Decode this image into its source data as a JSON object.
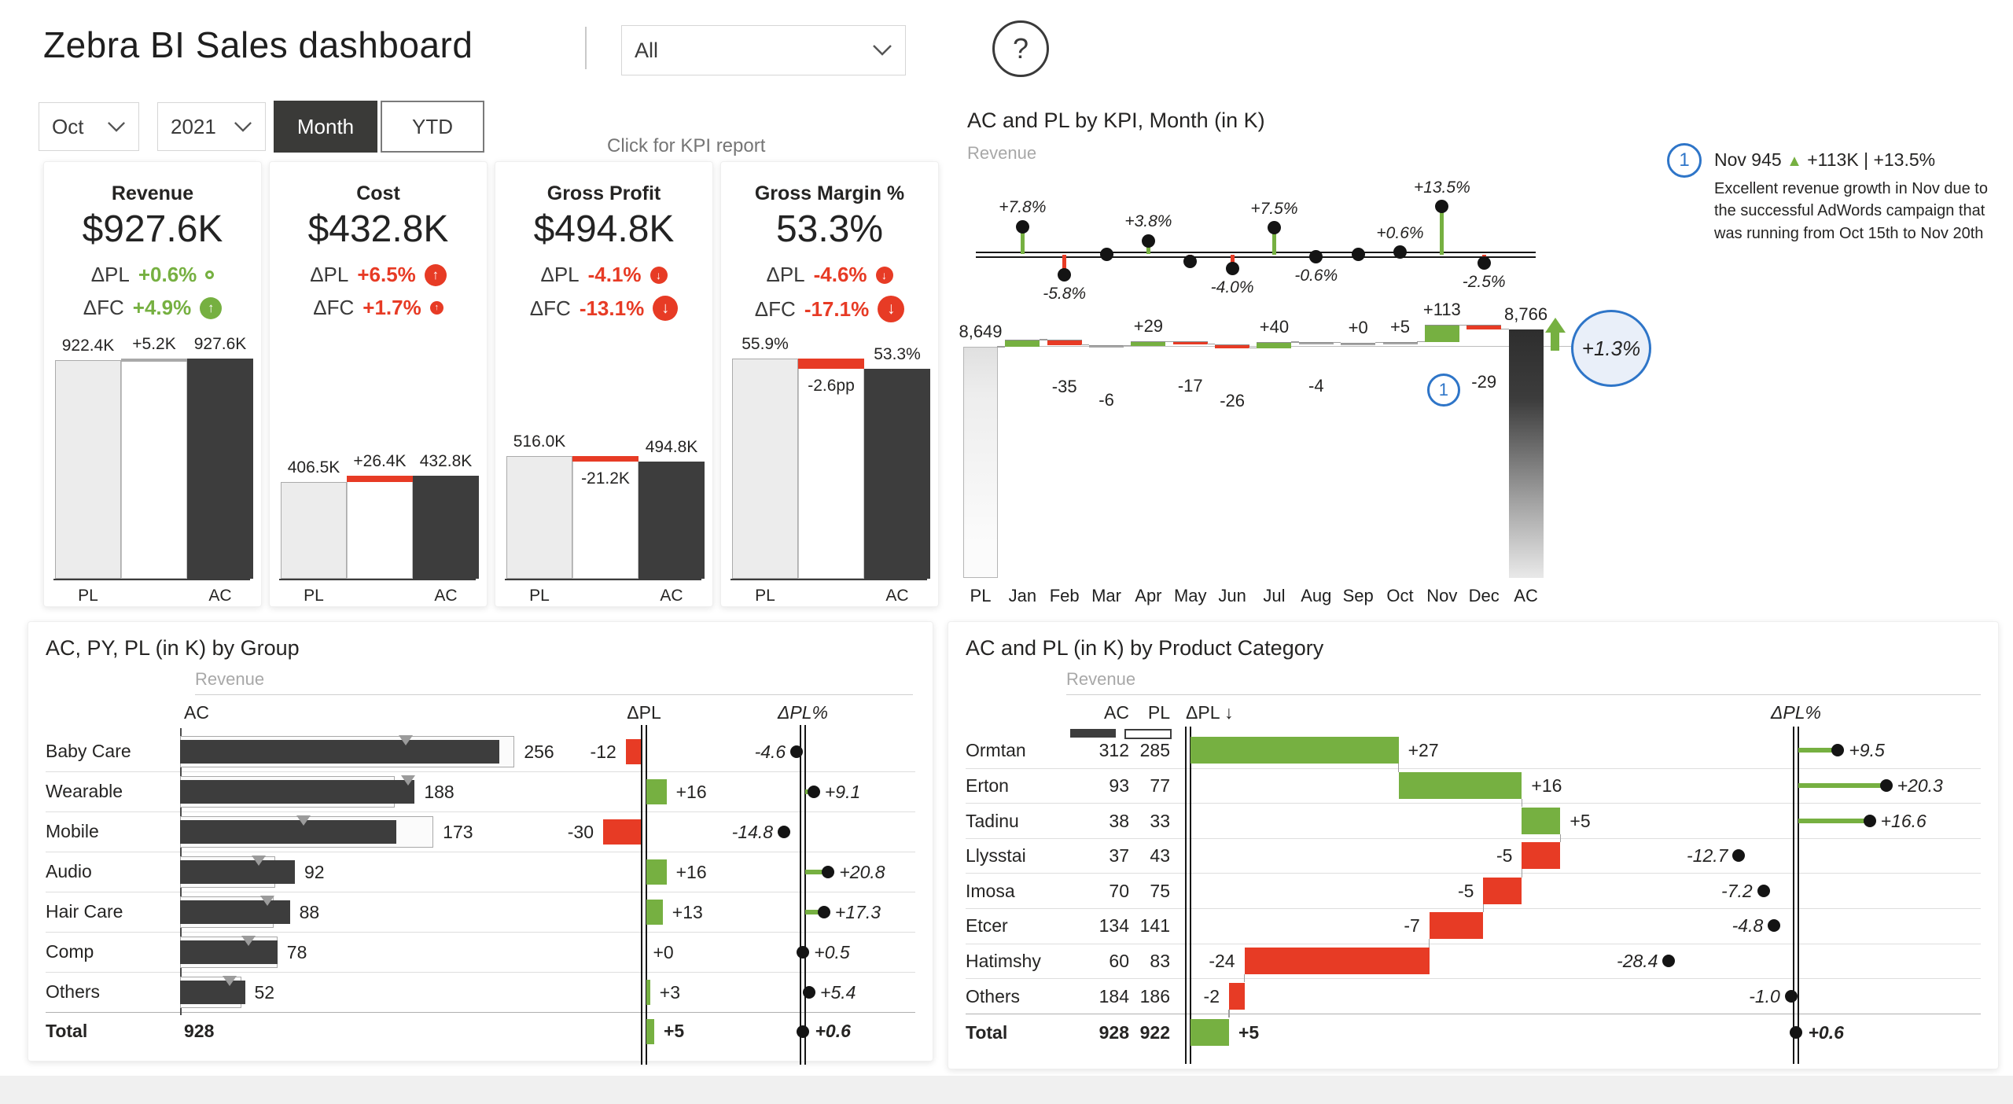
{
  "colors": {
    "green": "#76b041",
    "red": "#e73b25",
    "dark": "#3d3d3d",
    "light_bar": "#ececec",
    "gray_seg": "#a9a9a9",
    "blue": "#2e75c8"
  },
  "header": {
    "title": "Zebra BI Sales dashboard",
    "divider": "|",
    "scope_dropdown": {
      "value": "All"
    },
    "help_label": "?"
  },
  "filters": {
    "month_dropdown": {
      "value": "Oct"
    },
    "year_dropdown": {
      "value": "2021"
    },
    "period_toggle": {
      "month": "Month",
      "ytd": "YTD",
      "selected": "Month"
    },
    "kpi_hint": "Click for KPI report"
  },
  "kpi_cards": [
    {
      "title": "Revenue",
      "value": "$927.6K",
      "pl_row": {
        "label": "ΔPL",
        "value": "+0.6%",
        "color": "green",
        "icon": {
          "dir": "none",
          "size": 11,
          "filled": false
        }
      },
      "fc_row": {
        "label": "ΔFC",
        "value": "+4.9%",
        "color": "green",
        "icon": {
          "dir": "up",
          "size": 28,
          "filled": true
        }
      },
      "chart": {
        "pl": 922.4,
        "ac": 927.6,
        "scale_max": 927.6,
        "pl_label": "922.4K",
        "delta_label": "+5.2K",
        "ac_label": "927.6K",
        "delta_color": "gray",
        "delta_label_pos": "above",
        "x_left": "PL",
        "x_right": "AC"
      }
    },
    {
      "title": "Cost",
      "value": "$432.8K",
      "pl_row": {
        "label": "ΔPL",
        "value": "+6.5%",
        "color": "red",
        "icon": {
          "dir": "up",
          "size": 28,
          "filled": true
        }
      },
      "fc_row": {
        "label": "ΔFC",
        "value": "+1.7%",
        "color": "red",
        "icon": {
          "dir": "up",
          "size": 17,
          "filled": true
        }
      },
      "chart": {
        "pl": 406.5,
        "ac": 432.8,
        "scale_max": 927.6,
        "pl_label": "406.5K",
        "delta_label": "+26.4K",
        "ac_label": "432.8K",
        "delta_color": "red",
        "delta_label_pos": "above",
        "x_left": "PL",
        "x_right": "AC"
      }
    },
    {
      "title": "Gross Profit",
      "value": "$494.8K",
      "pl_row": {
        "label": "ΔPL",
        "value": "-4.1%",
        "color": "red",
        "icon": {
          "dir": "down",
          "size": 22,
          "filled": true
        }
      },
      "fc_row": {
        "label": "ΔFC",
        "value": "-13.1%",
        "color": "red",
        "icon": {
          "dir": "down",
          "size": 32,
          "filled": true
        }
      },
      "chart": {
        "pl": 516.0,
        "ac": 494.8,
        "scale_max": 927.6,
        "pl_label": "516.0K",
        "delta_label": "-21.2K",
        "ac_label": "494.8K",
        "delta_color": "red",
        "delta_label_pos": "below",
        "x_left": "PL",
        "x_right": "AC"
      }
    },
    {
      "title": "Gross Margin %",
      "value": "53.3%",
      "pl_row": {
        "label": "ΔPL",
        "value": "-4.6%",
        "color": "red",
        "icon": {
          "dir": "down",
          "size": 22,
          "filled": true
        }
      },
      "fc_row": {
        "label": "ΔFC",
        "value": "-17.1%",
        "color": "red",
        "icon": {
          "dir": "down",
          "size": 34,
          "filled": true
        }
      },
      "chart": {
        "pl": 55.9,
        "ac": 53.3,
        "scale_max": 55.9,
        "pl_label": "55.9%",
        "delta_label": "-2.6pp",
        "ac_label": "53.3%",
        "delta_color": "red",
        "delta_label_pos": "below",
        "x_left": "PL",
        "x_right": "AC"
      }
    }
  ],
  "month_chart": {
    "title": "AC and PL by KPI, Month (in K)",
    "subtitle": "Revenue",
    "variance_months": [
      {
        "m": "Jan",
        "v": 7.8,
        "label": "+7.8%"
      },
      {
        "m": "Feb",
        "v": -5.8,
        "label": "-5.8%"
      },
      {
        "m": "Mar",
        "v": 0,
        "label": ""
      },
      {
        "m": "Apr",
        "v": 3.8,
        "label": "+3.8%"
      },
      {
        "m": "May",
        "v": -2.0,
        "label": ""
      },
      {
        "m": "Jun",
        "v": -4.0,
        "label": "-4.0%"
      },
      {
        "m": "Jul",
        "v": 7.5,
        "label": "+7.5%"
      },
      {
        "m": "Aug",
        "v": -0.6,
        "label": "-0.6%"
      },
      {
        "m": "Sep",
        "v": 0,
        "label": ""
      },
      {
        "m": "Oct",
        "v": 0.6,
        "label": "+0.6%"
      },
      {
        "m": "Nov",
        "v": 13.5,
        "label": "+13.5%"
      },
      {
        "m": "Dec",
        "v": -2.5,
        "label": "-2.5%"
      }
    ],
    "waterfall": {
      "start_label": "8,649",
      "start": 8649,
      "end_label": "8,766",
      "end": 8766,
      "months": [
        {
          "m": "Jan",
          "d": 47,
          "label": "",
          "pos": "none"
        },
        {
          "m": "Feb",
          "d": -35,
          "label": "-35",
          "pos": "below"
        },
        {
          "m": "Mar",
          "d": -6,
          "label": "-6",
          "pos": "below"
        },
        {
          "m": "Apr",
          "d": 29,
          "label": "+29",
          "pos": "above"
        },
        {
          "m": "May",
          "d": -17,
          "label": "-17",
          "pos": "below"
        },
        {
          "m": "Jun",
          "d": -26,
          "label": "-26",
          "pos": "below"
        },
        {
          "m": "Jul",
          "d": 40,
          "label": "+40",
          "pos": "above"
        },
        {
          "m": "Aug",
          "d": -4,
          "label": "-4",
          "pos": "below"
        },
        {
          "m": "Sep",
          "d": 0,
          "label": "+0",
          "pos": "above"
        },
        {
          "m": "Oct",
          "d": 5,
          "label": "+5",
          "pos": "above"
        },
        {
          "m": "Nov",
          "d": 113,
          "label": "+113",
          "pos": "above"
        },
        {
          "m": "Dec",
          "d": -29,
          "label": "-29",
          "pos": "below"
        }
      ],
      "axis_start": "PL",
      "axis_end": "AC",
      "note_marker": "1",
      "callout": "+1.3%"
    }
  },
  "annotation": {
    "marker": "1",
    "title_prefix": "Nov 945",
    "triangle": "▲",
    "title_suffix": "+113K | +13.5%",
    "body": "Excellent revenue growth in Nov due to the successful AdWords campaign that was running from Oct 15th to Nov 20th"
  },
  "group_chart": {
    "title": "AC, PY, PL (in K) by Group",
    "subtitle": "Revenue",
    "headers": {
      "ac": "AC",
      "dpl": "ΔPL",
      "dplpct": "ΔPL%"
    },
    "rows": [
      {
        "name": "Baby Care",
        "ac": 256,
        "ac_label": "256",
        "pl": 268,
        "py": 181,
        "dpl": -12,
        "dpl_label": "-12",
        "dplpct": -4.6,
        "dplpct_label": "-4.6"
      },
      {
        "name": "Wearable",
        "ac": 188,
        "ac_label": "188",
        "pl": 172,
        "py": 183,
        "dpl": 16,
        "dpl_label": "+16",
        "dplpct": 9.1,
        "dplpct_label": "+9.1"
      },
      {
        "name": "Mobile",
        "ac": 173,
        "ac_label": "173",
        "pl": 203,
        "py": 99,
        "dpl": -30,
        "dpl_label": "-30",
        "dplpct": -14.8,
        "dplpct_label": "-14.8"
      },
      {
        "name": "Audio",
        "ac": 92,
        "ac_label": "92",
        "pl": 76,
        "py": 63,
        "dpl": 16,
        "dpl_label": "+16",
        "dplpct": 20.8,
        "dplpct_label": "+20.8"
      },
      {
        "name": "Hair Care",
        "ac": 88,
        "ac_label": "88",
        "pl": 75,
        "py": 70,
        "dpl": 13,
        "dpl_label": "+13",
        "dplpct": 17.3,
        "dplpct_label": "+17.3"
      },
      {
        "name": "Comp",
        "ac": 78,
        "ac_label": "78",
        "pl": 78,
        "py": 55,
        "dpl": 0,
        "dpl_label": "+0",
        "dplpct": 0.5,
        "dplpct_label": "+0.5"
      },
      {
        "name": "Others",
        "ac": 52,
        "ac_label": "52",
        "pl": 49,
        "py": 40,
        "dpl": 3,
        "dpl_label": "+3",
        "dplpct": 5.4,
        "dplpct_label": "+5.4"
      }
    ],
    "total": {
      "name": "Total",
      "ac_label": "928",
      "dpl": 5,
      "dpl_label": "+5",
      "dplpct": 0.6,
      "dplpct_label": "+0.6"
    }
  },
  "category_chart": {
    "title": "AC and PL (in K) by Product Category",
    "subtitle": "Revenue",
    "headers": {
      "ac": "AC",
      "pl": "PL",
      "dpl": "ΔPL ↓",
      "dplpct": "ΔPL%"
    },
    "rows": [
      {
        "name": "Ormtan",
        "ac_label": "312",
        "pl_label": "285",
        "dpl": 27,
        "dpl_label": "+27",
        "dplpct": 9.5,
        "dplpct_label": "+9.5"
      },
      {
        "name": "Erton",
        "ac_label": "93",
        "pl_label": "77",
        "dpl": 16,
        "dpl_label": "+16",
        "dplpct": 20.3,
        "dplpct_label": "+20.3"
      },
      {
        "name": "Tadinu",
        "ac_label": "38",
        "pl_label": "33",
        "dpl": 5,
        "dpl_label": "+5",
        "dplpct": 16.6,
        "dplpct_label": "+16.6"
      },
      {
        "name": "Llysstai",
        "ac_label": "37",
        "pl_label": "43",
        "dpl": -5,
        "dpl_label": "-5",
        "dplpct": -12.7,
        "dplpct_label": "-12.7"
      },
      {
        "name": "Imosa",
        "ac_label": "70",
        "pl_label": "75",
        "dpl": -5,
        "dpl_label": "-5",
        "dplpct": -7.2,
        "dplpct_label": "-7.2"
      },
      {
        "name": "Etcer",
        "ac_label": "134",
        "pl_label": "141",
        "dpl": -7,
        "dpl_label": "-7",
        "dplpct": -4.8,
        "dplpct_label": "-4.8"
      },
      {
        "name": "Hatimshy",
        "ac_label": "60",
        "pl_label": "83",
        "dpl": -24,
        "dpl_label": "-24",
        "dplpct": -28.4,
        "dplpct_label": "-28.4"
      },
      {
        "name": "Others",
        "ac_label": "184",
        "pl_label": "186",
        "dpl": -2,
        "dpl_label": "-2",
        "dplpct": -1.0,
        "dplpct_label": "-1.0"
      }
    ],
    "total": {
      "name": "Total",
      "ac_label": "928",
      "pl_label": "922",
      "dpl": 5,
      "dpl_label": "+5",
      "dplpct": 0.6,
      "dplpct_label": "+0.6"
    }
  }
}
